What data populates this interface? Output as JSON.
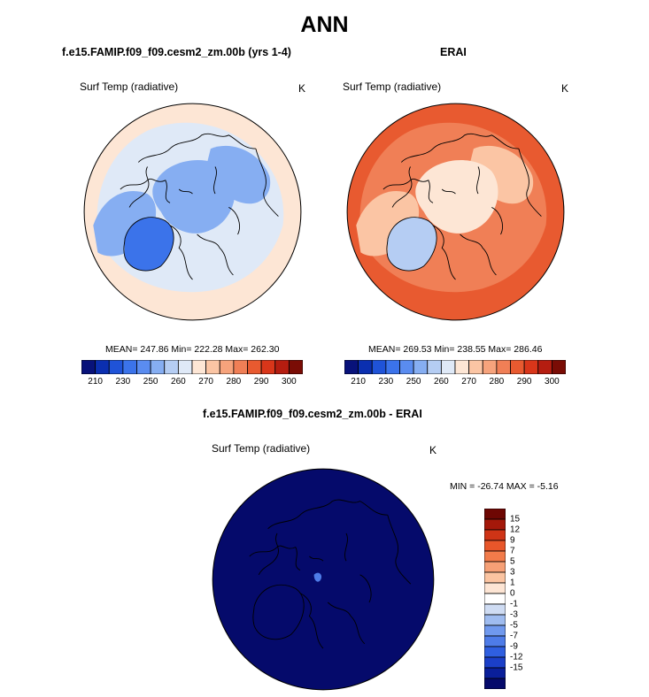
{
  "figure": {
    "title": "ANN",
    "left_panel_title": "f.e15.FAMIP.f09_f09.cesm2_zm.00b (yrs 1-4)",
    "right_panel_title": "ERAI",
    "diff_panel_title": "f.e15.FAMIP.f09_f09.cesm2_zm.00b - ERAI"
  },
  "colors": {
    "abs_scale": [
      "#08127a",
      "#0b2fb0",
      "#1f53d8",
      "#3b73ea",
      "#5a8cf0",
      "#86aef2",
      "#b5cdf3",
      "#dfe9f7",
      "#fde6d5",
      "#fbc5a4",
      "#f6a37c",
      "#f07f56",
      "#e85a30",
      "#d9361a",
      "#b51d10",
      "#7a0c05"
    ],
    "diff_scale": [
      "#050a6b",
      "#0a1f9a",
      "#1b3fc8",
      "#2f5fe0",
      "#4e7ce8",
      "#7099ee",
      "#9fbcf0",
      "#cfdcf3",
      "#ffffff",
      "#fde5d4",
      "#fbc4a1",
      "#f6a076",
      "#f27b4a",
      "#e8562a",
      "#cf3416",
      "#a4180a",
      "#6e0703"
    ],
    "land_outline": "#000000"
  },
  "chart_data": [
    {
      "type": "heatmap",
      "projection": "north-polar-stereographic",
      "title": "f.e15.FAMIP.f09_f09.cesm2_zm.00b (yrs 1-4)",
      "variable": "Surf Temp (radiative)",
      "units": "K",
      "stats": {
        "mean": 247.86,
        "min": 222.28,
        "max": 262.3
      },
      "stats_text": "MEAN= 247.86  Min= 222.28  Max= 262.30",
      "colorbar": {
        "ticks": [
          "210",
          "230",
          "250",
          "260",
          "270",
          "280",
          "290",
          "300"
        ],
        "bins": 16,
        "range": [
          200,
          310
        ]
      },
      "regions": {
        "ocean_outer": 258,
        "ocean_mid": 250,
        "arctic_ocean": 236,
        "greenland": 224,
        "land_interior": 240
      }
    },
    {
      "type": "heatmap",
      "projection": "north-polar-stereographic",
      "title": "ERAI",
      "variable": "Surf Temp (radiative)",
      "units": "K",
      "stats": {
        "mean": 269.53,
        "min": 238.55,
        "max": 286.46
      },
      "stats_text": "MEAN= 269.53  Min= 238.55  Max= 286.46",
      "colorbar": {
        "ticks": [
          "210",
          "230",
          "250",
          "260",
          "270",
          "280",
          "290",
          "300"
        ],
        "bins": 16,
        "range": [
          200,
          310
        ]
      },
      "regions": {
        "ocean_outer": 283,
        "ocean_mid": 276,
        "arctic_ocean": 258,
        "greenland": 245,
        "land_interior": 268
      }
    },
    {
      "type": "heatmap",
      "projection": "north-polar-stereographic",
      "title": "f.e15.FAMIP.f09_f09.cesm2_zm.00b - ERAI",
      "variable": "Surf Temp (radiative)",
      "units": "K",
      "stats": {
        "min": -26.74,
        "max": -5.16
      },
      "stats_text": "MIN = -26.74 MAX =  -5.16",
      "colorbar": {
        "orientation": "vertical",
        "ticks": [
          "15",
          "12",
          "9",
          "7",
          "5",
          "3",
          "1",
          "0",
          "-1",
          "-3",
          "-5",
          "-7",
          "-9",
          "-12",
          "-15"
        ],
        "bins": 17
      },
      "regions": {
        "everywhere": -20
      }
    }
  ]
}
